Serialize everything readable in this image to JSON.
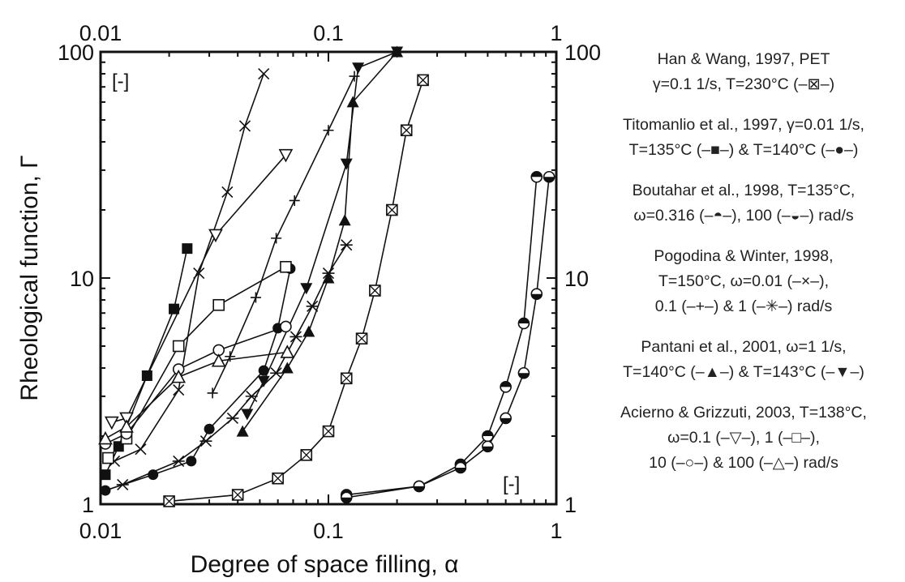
{
  "chart_data": {
    "type": "scatter",
    "xscale": "log",
    "yscale": "log",
    "xlim": [
      0.01,
      1
    ],
    "ylim": [
      1,
      100
    ],
    "xlabel": "Degree of space filling, α",
    "ylabel": "Rheological function, Γ",
    "x_ticks_bottom": [
      "0.01",
      "0.1",
      "1"
    ],
    "x_ticks_top": [
      "0.01",
      "0.1",
      "1"
    ],
    "y_ticks_left": [
      "1",
      "10",
      "100"
    ],
    "y_ticks_right": [
      "1",
      "10",
      "100"
    ],
    "unit_label_y": "[-]",
    "unit_label_x": "[-]",
    "series": [
      {
        "marker": "boxx",
        "x": [
          0.02,
          0.04,
          0.06,
          0.08,
          0.1,
          0.12,
          0.14,
          0.16,
          0.19,
          0.22,
          0.26
        ],
        "y": [
          1.03,
          1.1,
          1.3,
          1.65,
          2.1,
          3.6,
          5.4,
          8.8,
          20,
          45,
          75
        ]
      },
      {
        "marker": "filled-square",
        "x": [
          0.0105,
          0.012,
          0.016,
          0.021,
          0.024
        ],
        "y": [
          1.35,
          1.8,
          3.7,
          7.3,
          13.5
        ]
      },
      {
        "marker": "filled-circle",
        "x": [
          0.0105,
          0.017,
          0.025,
          0.03,
          0.052,
          0.06,
          0.068
        ],
        "y": [
          1.15,
          1.35,
          1.55,
          2.15,
          3.9,
          6.0,
          11.0
        ]
      },
      {
        "marker": "half-top",
        "x": [
          0.12,
          0.25,
          0.38,
          0.5,
          0.6,
          0.72,
          0.82
        ],
        "y": [
          1.1,
          1.2,
          1.5,
          2.0,
          3.3,
          6.3,
          28
        ]
      },
      {
        "marker": "half-bottom",
        "x": [
          0.12,
          0.25,
          0.38,
          0.5,
          0.6,
          0.72,
          0.82,
          0.93
        ],
        "y": [
          1.07,
          1.2,
          1.45,
          1.8,
          2.4,
          3.8,
          8.5,
          28
        ]
      },
      {
        "marker": "x",
        "x": [
          0.0115,
          0.015,
          0.022,
          0.027,
          0.036,
          0.043,
          0.052
        ],
        "y": [
          1.55,
          1.75,
          3.2,
          10.5,
          24,
          47,
          80
        ]
      },
      {
        "marker": "plus",
        "x": [
          0.031,
          0.037,
          0.048,
          0.059,
          0.071,
          0.1,
          0.13
        ],
        "y": [
          3.1,
          4.5,
          8.2,
          15,
          22,
          45,
          78
        ]
      },
      {
        "marker": "asterisk",
        "x": [
          0.0125,
          0.022,
          0.029,
          0.038,
          0.046,
          0.059,
          0.072,
          0.085,
          0.1,
          0.12
        ],
        "y": [
          1.22,
          1.55,
          1.9,
          2.4,
          3.0,
          3.8,
          5.5,
          7.5,
          10.5,
          14
        ]
      },
      {
        "marker": "filled-triangle-up",
        "x": [
          0.042,
          0.066,
          0.082,
          0.1,
          0.118,
          0.128,
          0.2
        ],
        "y": [
          2.1,
          4.0,
          5.8,
          10,
          18,
          60,
          100
        ]
      },
      {
        "marker": "filled-triangle-down",
        "x": [
          0.044,
          0.052,
          0.08,
          0.12,
          0.135,
          0.2
        ],
        "y": [
          2.5,
          3.5,
          9,
          32,
          85,
          100
        ]
      },
      {
        "marker": "open-triangle-down",
        "x": [
          0.0112,
          0.013,
          0.032,
          0.065
        ],
        "y": [
          2.3,
          2.4,
          15.5,
          35
        ]
      },
      {
        "marker": "open-square",
        "x": [
          0.0108,
          0.013,
          0.022,
          0.033,
          0.065
        ],
        "y": [
          1.6,
          1.95,
          5.0,
          7.6,
          11.2
        ]
      },
      {
        "marker": "open-circle",
        "x": [
          0.0105,
          0.013,
          0.022,
          0.033,
          0.065
        ],
        "y": [
          1.85,
          2.05,
          3.95,
          4.8,
          6.1
        ]
      },
      {
        "marker": "open-triangle-up",
        "x": [
          0.0105,
          0.013,
          0.022,
          0.033,
          0.066
        ],
        "y": [
          1.95,
          2.2,
          3.65,
          4.3,
          4.7
        ]
      }
    ],
    "legend": [
      {
        "lines": [
          "Han & Wang, 1997, PET",
          "γ=0.1 1/s, T=230°C (–⊠–)"
        ]
      },
      {
        "lines": [
          "Titomanlio et al., 1997, γ=0.01 1/s,",
          "T=135°C (–■–) & T=140°C (–●–)"
        ]
      },
      {
        "lines": [
          "Boutahar et al., 1998, T=135°C,",
          "ω=0.316 (–◓–), 100 (–◒–) rad/s"
        ]
      },
      {
        "lines": [
          "Pogodina & Winter, 1998,",
          "T=150°C, ω=0.01 (–×–),",
          "0.1 (–+–) & 1 (–✳–) rad/s"
        ]
      },
      {
        "lines": [
          "Pantani et al., 2001, ω=1 1/s,",
          "T=140°C (–▲–) & T=143°C (–▼–)"
        ]
      },
      {
        "lines": [
          "Acierno & Grizzuti, 2003, T=138°C,",
          "ω=0.1 (–▽–), 1 (–□–),",
          "10 (–○–) & 100 (–△–) rad/s"
        ]
      }
    ]
  }
}
